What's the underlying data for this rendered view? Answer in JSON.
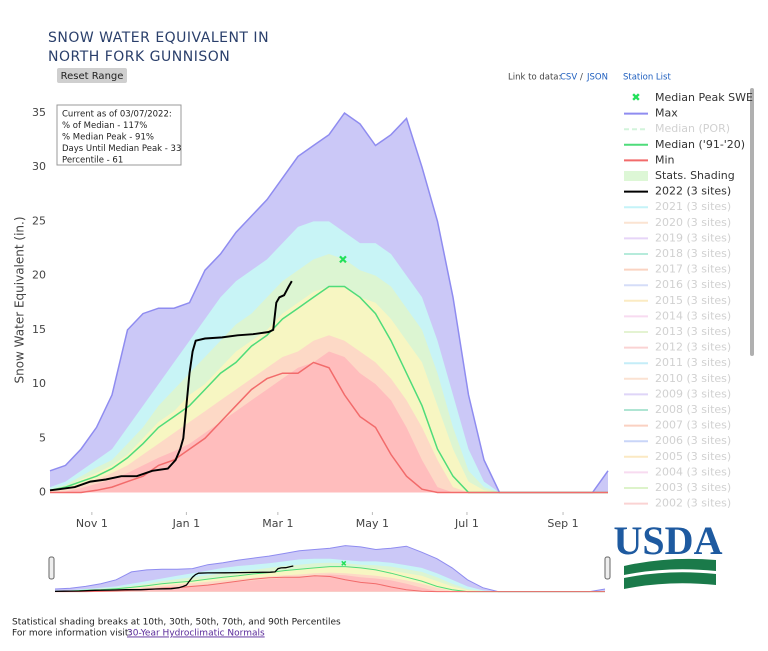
{
  "chart_data": {
    "type": "area",
    "title_lines": [
      "SNOW WATER EQUIVALENT IN",
      "NORTH FORK GUNNISON"
    ],
    "reset_button": "Reset Range",
    "data_link": {
      "label": "Link to data:",
      "csv": "CSV",
      "separator": "/",
      "json": "JSON"
    },
    "station_list": "Station List",
    "y_label": "Snow Water Equivalent (in.)",
    "info_lines": [
      "Current as of 03/07/2022:",
      "% of Median - 117%",
      "% Median Peak - 91%",
      "Days Until Median Peak - 33",
      "Percentile - 61"
    ],
    "xlim": [
      4,
      364
    ],
    "xticks": [
      {
        "value": 31,
        "label": "Nov 1"
      },
      {
        "value": 92,
        "label": "Jan 1"
      },
      {
        "value": 151,
        "label": "Mar 1"
      },
      {
        "value": 212,
        "label": "May 1"
      },
      {
        "value": 273,
        "label": "Jul 1"
      },
      {
        "value": 335,
        "label": "Sep 1"
      }
    ],
    "ylim": [
      -1.8,
      36.2
    ],
    "yticks": [
      0,
      5,
      10,
      15,
      20,
      25,
      30,
      35
    ],
    "grid": false,
    "legend": "right",
    "x": [
      4,
      14,
      24,
      34,
      44,
      54,
      64,
      74,
      84,
      94,
      104,
      114,
      124,
      134,
      144,
      154,
      164,
      174,
      184,
      194,
      204,
      214,
      224,
      234,
      244,
      254,
      264,
      274,
      284,
      294,
      304,
      314,
      324,
      334,
      344,
      354,
      364
    ],
    "series": [
      {
        "name": "Max",
        "color": "#8f8cf0",
        "fill": "#cbc8f7",
        "values": [
          2,
          2.5,
          4,
          6,
          9,
          15,
          16.5,
          17,
          17,
          17.5,
          20.5,
          22,
          24,
          25.5,
          27,
          29,
          31,
          32,
          33,
          35,
          34,
          32,
          33,
          34.5,
          30,
          25,
          18,
          9,
          3,
          0,
          0,
          0,
          0,
          0,
          0,
          0,
          2
        ]
      },
      {
        "name": "Median ('91-'20)",
        "color": "#4fdc7a",
        "values": [
          0.2,
          0.5,
          1,
          1.5,
          2.2,
          3.2,
          4.5,
          6,
          7,
          8,
          9.5,
          11,
          12,
          13.5,
          14.5,
          16,
          17,
          18,
          19,
          19,
          18,
          16.5,
          14,
          11,
          8,
          4,
          1.5,
          0,
          0,
          0,
          0,
          0,
          0,
          0,
          0,
          0,
          0
        ]
      },
      {
        "name": "Min",
        "color": "#f26b6b",
        "values": [
          0,
          0,
          0,
          0.2,
          0.5,
          1,
          1.5,
          2.5,
          3,
          4,
          5,
          6.5,
          8,
          9.5,
          10.5,
          11,
          11,
          12,
          11.5,
          9,
          7,
          6,
          3.5,
          1.5,
          0.3,
          0,
          0,
          0,
          0,
          0,
          0,
          0,
          0,
          0,
          0,
          0,
          0
        ]
      },
      {
        "name": "2022 (3 sites)",
        "color": "#000000",
        "x": [
          4,
          10,
          20,
          30,
          40,
          50,
          60,
          70,
          80,
          85,
          88,
          90,
          92,
          94,
          96,
          98,
          104,
          115,
          125,
          135,
          145,
          148,
          150,
          152,
          155,
          158,
          160
        ],
        "values": [
          0.2,
          0.3,
          0.5,
          1,
          1.2,
          1.5,
          1.5,
          2,
          2.2,
          3,
          4,
          5,
          8,
          11,
          13,
          14,
          14.2,
          14.3,
          14.5,
          14.6,
          14.8,
          15,
          17.5,
          18,
          18.2,
          19,
          19.5
        ]
      }
    ],
    "shading": {
      "name": "Stats. Shading",
      "legend_color": "#ddf7d6",
      "bands": [
        {
          "color": "#c8f4f6",
          "values": [
            0.5,
            1,
            2,
            3,
            4,
            6,
            8,
            10,
            12,
            14,
            16,
            18,
            19.5,
            20.5,
            21.5,
            23,
            24.5,
            25,
            25,
            24,
            23,
            23,
            22,
            20,
            18,
            14,
            9,
            4,
            1,
            0,
            0,
            0,
            0,
            0,
            0,
            0,
            0
          ]
        },
        {
          "color": "#dcf5d2",
          "values": [
            0.3,
            0.7,
            1.5,
            2.3,
            3,
            4.5,
            6,
            8,
            9.5,
            11,
            12.5,
            14,
            15.5,
            16.5,
            18,
            19.5,
            20.5,
            21.5,
            22,
            21.5,
            20.5,
            20,
            19,
            17,
            15,
            11,
            6,
            2,
            0.5,
            0,
            0,
            0,
            0,
            0,
            0,
            0,
            0
          ]
        },
        {
          "color": "#f7f6c2",
          "values": [
            0.2,
            0.5,
            1.2,
            1.8,
            2.5,
            3.5,
            5,
            6.5,
            7.5,
            9,
            10,
            11.5,
            13,
            14,
            15,
            16.5,
            17.5,
            18.5,
            19,
            19,
            18,
            17.5,
            16,
            14,
            12,
            8,
            4,
            1,
            0.2,
            0,
            0,
            0,
            0,
            0,
            0,
            0,
            0
          ]
        },
        {
          "color": "#fdd9c6",
          "values": [
            0.1,
            0.3,
            0.7,
            1.2,
            1.8,
            2.5,
            3.5,
            4.5,
            5.5,
            6.5,
            7.5,
            8.5,
            9.5,
            10.5,
            11.5,
            12.5,
            13,
            14,
            14.5,
            14,
            13,
            12,
            10.5,
            8.5,
            6,
            3,
            0.5,
            0,
            0,
            0,
            0,
            0,
            0,
            0,
            0,
            0,
            0
          ]
        },
        {
          "color": "#ffbdbd",
          "values": [
            0,
            0.1,
            0.4,
            0.8,
            1.2,
            1.8,
            2.5,
            3.2,
            3.8,
            4.5,
            5.5,
            6.5,
            7.5,
            8.5,
            9.5,
            10.5,
            11.5,
            12,
            13,
            12.5,
            11,
            10,
            8.5,
            6,
            3,
            0.5,
            0,
            0,
            0,
            0,
            0,
            0,
            0,
            0,
            0,
            0,
            0
          ]
        }
      ]
    },
    "median_peak": {
      "name": "Median Peak SWE",
      "color": "#22e05a",
      "x": 193,
      "value": 21.5
    },
    "hidden_series": [
      {
        "name": "Median (POR)",
        "color": "#9de8b0"
      },
      {
        "name": "2021 (3 sites)",
        "color": "#7fe5f0"
      },
      {
        "name": "2020 (3 sites)",
        "color": "#f7c49c"
      },
      {
        "name": "2019 (3 sites)",
        "color": "#c9a3f0"
      },
      {
        "name": "2018 (3 sites)",
        "color": "#5fd3b0"
      },
      {
        "name": "2017 (3 sites)",
        "color": "#f5a07a"
      },
      {
        "name": "2016 (3 sites)",
        "color": "#a4b4f0"
      },
      {
        "name": "2015 (3 sites)",
        "color": "#f7d57c"
      },
      {
        "name": "2014 (3 sites)",
        "color": "#f0b0e0"
      },
      {
        "name": "2013 (3 sites)",
        "color": "#c5e59c"
      },
      {
        "name": "2012 (3 sites)",
        "color": "#f5a0a0"
      },
      {
        "name": "2011 (3 sites)",
        "color": "#7fd8f0"
      },
      {
        "name": "2010 (3 sites)",
        "color": "#f7c09c"
      },
      {
        "name": "2009 (3 sites)",
        "color": "#b9a3f0"
      },
      {
        "name": "2008 (3 sites)",
        "color": "#4fc7a0"
      },
      {
        "name": "2007 (3 sites)",
        "color": "#f59a7a"
      },
      {
        "name": "2006 (3 sites)",
        "color": "#8aa4f0"
      },
      {
        "name": "2005 (3 sites)",
        "color": "#f7d07c"
      },
      {
        "name": "2004 (3 sites)",
        "color": "#f0b0e0"
      },
      {
        "name": "2003 (3 sites)",
        "color": "#b5e58c"
      },
      {
        "name": "2002 (3 sites)",
        "color": "#f5a0a0"
      }
    ],
    "footnote": {
      "line1": "Statistical shading breaks at 10th, 30th, 50th, 70th, and 90th Percentiles",
      "prefix": "For more information visit:",
      "link": "30-Year Hydroclimatic Normals"
    },
    "logo": "USDA"
  }
}
